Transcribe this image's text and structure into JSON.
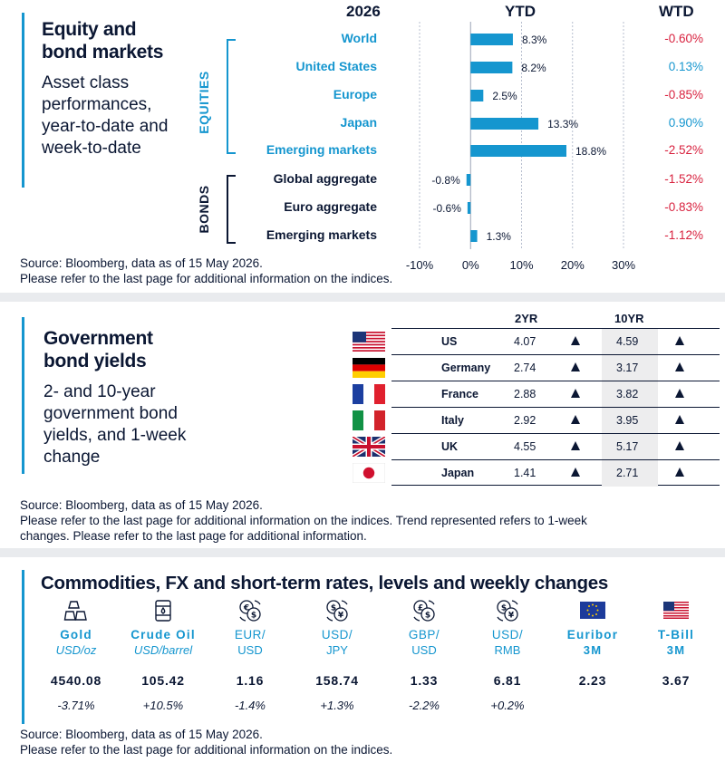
{
  "equity_panel": {
    "title_line1": "Equity and",
    "title_line2": "bond markets",
    "subtitle_lines": [
      "Asset class",
      "performances,",
      "year-to-date and",
      "week-to-date"
    ],
    "year_header": "2026",
    "ytd_header": "YTD",
    "wtd_header": "WTD",
    "group_equities": "EQUITIES",
    "group_bonds": "BONDS",
    "source": "Source: Bloomberg, data as of 15 May 2026.",
    "note": "Please refer to the last page for additional information on the indices.",
    "colors": {
      "accent": "#1596cf",
      "navy": "#0b1733",
      "negative": "#d8223f",
      "positive": "#1596cf"
    }
  },
  "chart_data": {
    "type": "bar",
    "orientation": "horizontal",
    "categories": [
      "World",
      "United States",
      "Europe",
      "Japan",
      "Emerging  markets",
      "Global  aggregate",
      "Euro  aggregate",
      "Emerging  markets"
    ],
    "groups": [
      "EQUITIES",
      "EQUITIES",
      "EQUITIES",
      "EQUITIES",
      "EQUITIES",
      "BONDS",
      "BONDS",
      "BONDS"
    ],
    "values": [
      8.3,
      8.2,
      2.5,
      13.3,
      18.8,
      -0.8,
      -0.6,
      1.3
    ],
    "value_labels": [
      "8.3%",
      "8.2%",
      "2.5%",
      "13.3%",
      "18.8%",
      "-0.8%",
      "-0.6%",
      "1.3%"
    ],
    "wtd_labels": [
      "-0.60%",
      "0.13%",
      "-0.85%",
      "0.90%",
      "-2.52%",
      "-1.52%",
      "-0.83%",
      "-1.12%"
    ],
    "wtd_values": [
      -0.6,
      0.13,
      -0.85,
      0.9,
      -2.52,
      -1.52,
      -0.83,
      -1.12
    ],
    "xticks": [
      -10,
      0,
      10,
      20,
      30
    ],
    "xtick_labels": [
      "-10%",
      "0%",
      "10%",
      "20%",
      "30%"
    ],
    "xlim": [
      -10,
      30
    ],
    "grid": true,
    "bar_color": "#1596cf"
  },
  "yields_panel": {
    "title_line1": "Government",
    "title_line2": "bond yields",
    "subtitle_lines": [
      "2- and 10-year",
      "government bond",
      "yields, and 1-week",
      "change"
    ],
    "col_2yr": "2YR",
    "col_10yr": "10YR",
    "rows": [
      {
        "flag": "us-flag-icon",
        "country": "US",
        "y2": "4.07",
        "y10": "4.59",
        "trend2": "up-arrow-icon",
        "trend10": "up-arrow-icon"
      },
      {
        "flag": "germany-flag-icon",
        "country": "Germany",
        "y2": "2.74",
        "y10": "3.17",
        "trend2": "up-arrow-icon",
        "trend10": "up-arrow-icon"
      },
      {
        "flag": "france-flag-icon",
        "country": "France",
        "y2": "2.88",
        "y10": "3.82",
        "trend2": "up-arrow-icon",
        "trend10": "up-arrow-icon"
      },
      {
        "flag": "italy-flag-icon",
        "country": "Italy",
        "y2": "2.92",
        "y10": "3.95",
        "trend2": "up-arrow-icon",
        "trend10": "up-arrow-icon"
      },
      {
        "flag": "uk-flag-icon",
        "country": "UK",
        "y2": "4.55",
        "y10": "5.17",
        "trend2": "up-arrow-icon",
        "trend10": "up-arrow-icon"
      },
      {
        "flag": "japan-flag-icon",
        "country": "Japan",
        "y2": "1.41",
        "y10": "2.71",
        "trend2": "up-arrow-icon",
        "trend10": "up-arrow-icon"
      }
    ],
    "source": "Source: Bloomberg, data as of 15 May 2026.",
    "note_line1": "Please refer to the last page for additional information on the indices. Trend represented refers to 1-week",
    "note_line2": "changes. Please refer to the last page for additional information."
  },
  "commodities_panel": {
    "title": "Commodities, FX and short-term rates, levels and weekly changes",
    "items": [
      {
        "icon": "gold-bars-icon",
        "name": "Gold",
        "unit": "USD/oz",
        "value": "4540.08",
        "change": "-3.71%"
      },
      {
        "icon": "oil-barrel-icon",
        "name": "Crude Oil",
        "unit": "USD/barrel",
        "value": "105.42",
        "change": "+10.5%"
      },
      {
        "icon": "euro-dollar-exchange-icon",
        "name": "EUR/",
        "unit": "USD",
        "value": "1.16",
        "change": "-1.4%"
      },
      {
        "icon": "dollar-yen-exchange-icon",
        "name": "USD/",
        "unit": "JPY",
        "value": "158.74",
        "change": "+1.3%"
      },
      {
        "icon": "pound-dollar-exchange-icon",
        "name": "GBP/",
        "unit": "USD",
        "value": "1.33",
        "change": "-2.2%"
      },
      {
        "icon": "dollar-yuan-exchange-icon",
        "name": "USD/",
        "unit": "RMB",
        "value": "6.81",
        "change": "+0.2%"
      },
      {
        "icon": "eu-flag-icon",
        "name": "Euribor",
        "unit": "3M",
        "value": "2.23",
        "change": ""
      },
      {
        "icon": "us-flag-icon",
        "name": "T-Bill",
        "unit": "3M",
        "value": "3.67",
        "change": ""
      }
    ],
    "source": "Source: Bloomberg, data as of 15 May 2026.",
    "note": "Please refer to the last page for additional information on the indices."
  }
}
